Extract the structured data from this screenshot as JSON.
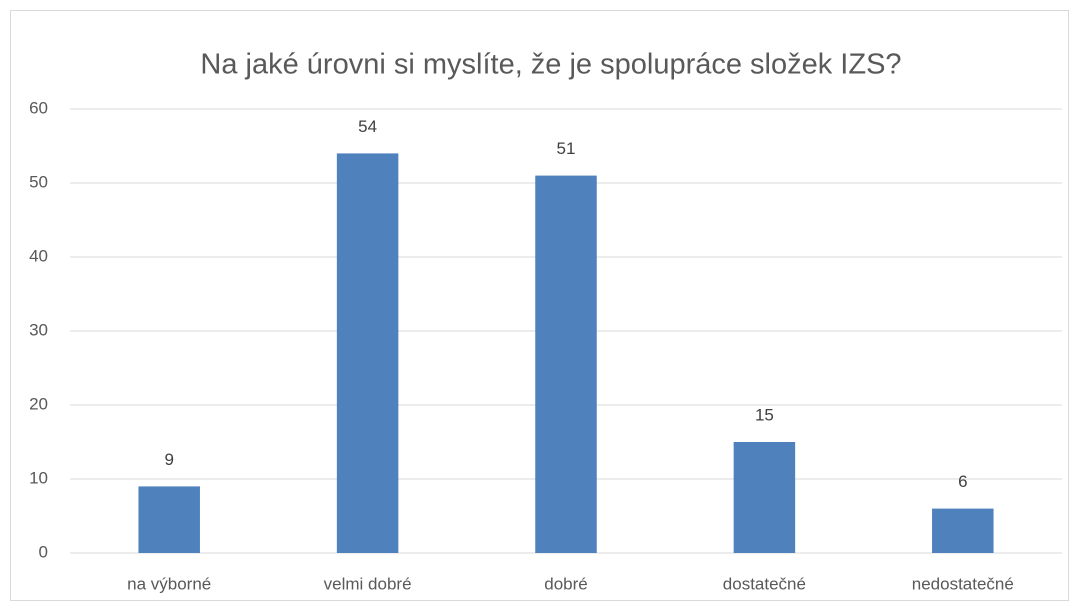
{
  "chart_data": {
    "type": "bar",
    "title": "Na jaké úrovni si myslíte, že je spolupráce složek IZS?",
    "categories": [
      "na výborné",
      "velmi dobré",
      "dobré",
      "dostatečné",
      "nedostatečné"
    ],
    "values": [
      9,
      54,
      51,
      15,
      6
    ],
    "color": "#4f81bd",
    "ylim": [
      0,
      60
    ],
    "yticks": [
      0,
      10,
      20,
      30,
      40,
      50,
      60
    ],
    "grid": true
  }
}
